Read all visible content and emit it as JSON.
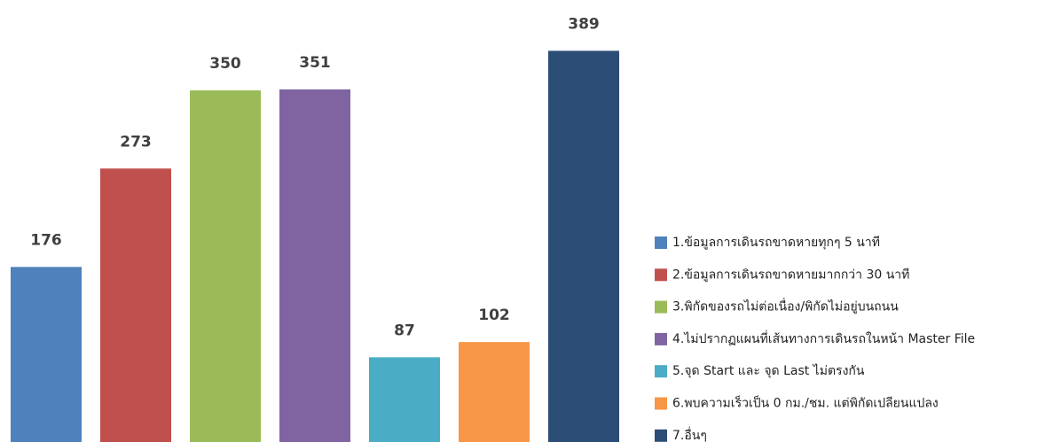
{
  "chart_data": {
    "type": "bar",
    "series": [
      {
        "name": "1.ข้อมูลการเดินรถขาดหายทุกๆ 5 นาที",
        "color": "#4f81bd",
        "values": [
          176
        ]
      },
      {
        "name": "2.ข้อมูลการเดินรถขาดหายมากกว่า 30 นาที",
        "color": "#c0504d",
        "values": [
          273
        ]
      },
      {
        "name": "3.พิกัดของรถไม่ต่อเนื่อง/พิกัดไม่อยู่บนถนน",
        "color": "#9bbb59",
        "values": [
          350
        ]
      },
      {
        "name": "4.ไม่ปรากฏแผนที่เส้นทางการเดินรถในหน้า Master File",
        "color": "#8064a2",
        "values": [
          351
        ]
      },
      {
        "name": "5.จุด Start และ จุด Last ไม่ตรงกัน",
        "color": "#4bacc6",
        "values": [
          87
        ]
      },
      {
        "name": "6.พบความเร็วเป็น 0 กม./ชม. แต่พิกัดเปลียนแปลง",
        "color": "#f79646",
        "values": [
          102
        ]
      },
      {
        "name": "7.อื่นๆ",
        "color": "#2c4d75",
        "values": [
          389
        ]
      }
    ],
    "ylim": [
      0,
      430
    ],
    "legend": "right"
  }
}
